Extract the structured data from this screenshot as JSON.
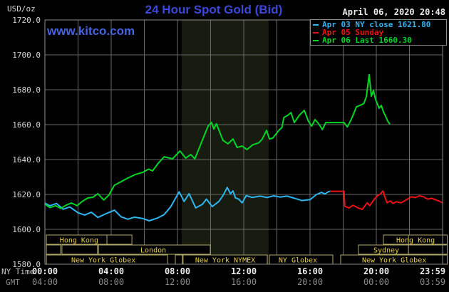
{
  "header": {
    "unit_label": "USD/oz",
    "title": "24 Hour Spot Gold (Bid)",
    "datetime": "April 06, 2020 20:48",
    "site_link": "www.kitco.com"
  },
  "footer": {
    "ny_time_label": "NY Time",
    "gmt_label": "GMT"
  },
  "chart_data": {
    "type": "line",
    "title": "24 Hour Spot Gold (Bid)",
    "ylabel": "USD/oz",
    "ylim": [
      1580,
      1720
    ],
    "xlim_hours": [
      0,
      24
    ],
    "grid_hours_step": 2,
    "apr03_ny_close": 1621.8,
    "apr06_last": 1660.3,
    "nymex_band_hours": [
      8.25,
      13.5
    ],
    "colors": {
      "background": "#000000",
      "grid": "#686868",
      "border": "#8c8c8c",
      "band": "#171b10",
      "session_border": "#b1a767",
      "session_text": "#e9cf4a",
      "y_tick_text": "#d4d4d4",
      "ny_tick_text": "#ececec",
      "gmt_tick_text": "#8a8a8a"
    },
    "y_ticks": [
      {
        "value": 1720,
        "label": "1720.0"
      },
      {
        "value": 1700,
        "label": "1700.0"
      },
      {
        "value": 1680,
        "label": "1680.0"
      },
      {
        "value": 1660,
        "label": "1660.0"
      },
      {
        "value": 1640,
        "label": "1640.0"
      },
      {
        "value": 1620,
        "label": "1620.0"
      },
      {
        "value": 1600,
        "label": "1600.0"
      },
      {
        "value": 1580,
        "label": "1580.0"
      }
    ],
    "x_ticks": [
      {
        "h": 0,
        "ny": "00:00",
        "gmt": "04:00"
      },
      {
        "h": 4,
        "ny": "04:00",
        "gmt": "08:00"
      },
      {
        "h": 8,
        "ny": "08:00",
        "gmt": "12:00"
      },
      {
        "h": 12,
        "ny": "12:00",
        "gmt": "16:00"
      },
      {
        "h": 16,
        "ny": "16:00",
        "gmt": "20:00"
      },
      {
        "h": 20,
        "ny": "20:00",
        "gmt": "00:00"
      },
      {
        "h": 23.983,
        "ny": "23:59",
        "gmt": "03:59"
      }
    ],
    "sessions": [
      {
        "boxes": [
          [
            0.09,
            3.74
          ],
          [
            3.74,
            5.25
          ],
          [
            20.43,
            21.94
          ],
          [
            21.94,
            24.28
          ]
        ],
        "labels": [
          {
            "text": "Hong Kong",
            "cx": 2.06
          },
          {
            "text": "Hong Kong",
            "cx": 22.37
          }
        ]
      },
      {
        "boxes": [
          [
            0.09,
            0.95
          ],
          [
            1.03,
            3.18
          ],
          [
            3.23,
            9.98
          ],
          [
            18.92,
            21.94
          ],
          [
            21.94,
            24.28
          ]
        ],
        "labels": [
          {
            "text": "London",
            "cx": 6.54
          },
          {
            "text": "Sydney",
            "cx": 20.6
          }
        ]
      },
      {
        "boxes": [
          [
            0.09,
            7.4
          ],
          [
            7.87,
            8.3
          ],
          [
            8.34,
            13.42
          ],
          [
            13.55,
            17.38
          ],
          [
            17.85,
            24.28
          ]
        ],
        "labels": [
          {
            "text": "New York Globex",
            "cx": 3.53
          },
          {
            "text": "New York NYMEX",
            "cx": 10.88
          },
          {
            "text": "NY Globex",
            "cx": 15.27
          },
          {
            "text": "New York Globex",
            "cx": 21.08
          }
        ]
      }
    ],
    "series": [
      {
        "id": "apr03-ny-close",
        "name": "Apr 03 NY close 1621.80",
        "color": "#2db6f0",
        "points": [
          [
            0,
            1615
          ],
          [
            0.3,
            1613.5
          ],
          [
            0.7,
            1614.8
          ],
          [
            1.1,
            1611.5
          ],
          [
            1.5,
            1612.8
          ],
          [
            2.0,
            1609.5
          ],
          [
            2.4,
            1608.2
          ],
          [
            2.8,
            1609.8
          ],
          [
            3.2,
            1606.8
          ],
          [
            3.7,
            1609.0
          ],
          [
            4.2,
            1611.0
          ],
          [
            4.6,
            1607.2
          ],
          [
            5.0,
            1605.8
          ],
          [
            5.4,
            1607.0
          ],
          [
            5.9,
            1606.2
          ],
          [
            6.3,
            1604.9
          ],
          [
            6.8,
            1606.5
          ],
          [
            7.2,
            1608.5
          ],
          [
            7.6,
            1613.0
          ],
          [
            8.1,
            1621.5
          ],
          [
            8.4,
            1616.0
          ],
          [
            8.7,
            1620.4
          ],
          [
            9.1,
            1612.3
          ],
          [
            9.5,
            1614.3
          ],
          [
            9.75,
            1617.3
          ],
          [
            10.1,
            1613.0
          ],
          [
            10.5,
            1616.0
          ],
          [
            10.75,
            1619.3
          ],
          [
            11.0,
            1624.0
          ],
          [
            11.2,
            1620.4
          ],
          [
            11.35,
            1622.0
          ],
          [
            11.5,
            1618.0
          ],
          [
            11.7,
            1617.3
          ],
          [
            11.9,
            1615.2
          ],
          [
            12.15,
            1619.3
          ],
          [
            12.5,
            1618.3
          ],
          [
            13.0,
            1619.0
          ],
          [
            13.4,
            1618.2
          ],
          [
            13.8,
            1619.2
          ],
          [
            14.2,
            1618.5
          ],
          [
            14.6,
            1619.0
          ],
          [
            15.0,
            1618.0
          ],
          [
            15.5,
            1616.5
          ],
          [
            16.0,
            1617.0
          ],
          [
            16.4,
            1620.0
          ],
          [
            16.7,
            1621.2
          ],
          [
            16.9,
            1620.3
          ],
          [
            17.1,
            1621.5
          ],
          [
            17.2,
            1621.8
          ]
        ]
      },
      {
        "id": "apr05-sunday",
        "name": "Apr 05 Sunday",
        "color": "#ee1111",
        "points": [
          [
            17.2,
            1621.8
          ],
          [
            18.05,
            1621.8
          ],
          [
            18.1,
            1613.2
          ],
          [
            18.35,
            1612.3
          ],
          [
            18.6,
            1613.8
          ],
          [
            18.9,
            1612.3
          ],
          [
            19.15,
            1611.4
          ],
          [
            19.45,
            1615.2
          ],
          [
            19.6,
            1613.6
          ],
          [
            19.9,
            1617.5
          ],
          [
            20.1,
            1619.5
          ],
          [
            20.25,
            1620.3
          ],
          [
            20.4,
            1622.0
          ],
          [
            20.5,
            1619.0
          ],
          [
            20.65,
            1615.2
          ],
          [
            20.85,
            1616.3
          ],
          [
            21.0,
            1614.8
          ],
          [
            21.2,
            1615.8
          ],
          [
            21.5,
            1615.2
          ],
          [
            21.8,
            1616.8
          ],
          [
            22.1,
            1618.6
          ],
          [
            22.35,
            1618.2
          ],
          [
            22.6,
            1619.2
          ],
          [
            22.85,
            1618.6
          ],
          [
            23.1,
            1617.3
          ],
          [
            23.35,
            1617.8
          ],
          [
            23.6,
            1616.8
          ],
          [
            23.8,
            1616.2
          ],
          [
            23.98,
            1615.2
          ]
        ]
      },
      {
        "id": "apr06-current",
        "name": "Apr 06 Last 1660.30",
        "color": "#00d626",
        "points": [
          [
            0,
            1614.5
          ],
          [
            0.3,
            1612.5
          ],
          [
            0.65,
            1613.5
          ],
          [
            0.95,
            1612.0
          ],
          [
            1.3,
            1613.9
          ],
          [
            1.6,
            1615.1
          ],
          [
            1.95,
            1613.5
          ],
          [
            2.25,
            1616.0
          ],
          [
            2.6,
            1618.0
          ],
          [
            2.9,
            1618.4
          ],
          [
            3.2,
            1620.4
          ],
          [
            3.55,
            1616.8
          ],
          [
            3.85,
            1619.5
          ],
          [
            4.2,
            1625.3
          ],
          [
            4.6,
            1627.3
          ],
          [
            5.0,
            1629.4
          ],
          [
            5.45,
            1631.4
          ],
          [
            5.9,
            1632.6
          ],
          [
            6.25,
            1634.5
          ],
          [
            6.5,
            1633.5
          ],
          [
            6.85,
            1638.0
          ],
          [
            7.2,
            1641.6
          ],
          [
            7.7,
            1640.4
          ],
          [
            8.15,
            1644.9
          ],
          [
            8.5,
            1640.8
          ],
          [
            8.8,
            1642.9
          ],
          [
            9.05,
            1640.4
          ],
          [
            9.45,
            1649.8
          ],
          [
            9.85,
            1659.2
          ],
          [
            10.05,
            1661.3
          ],
          [
            10.2,
            1657.5
          ],
          [
            10.35,
            1660.5
          ],
          [
            10.75,
            1651.0
          ],
          [
            11.05,
            1649.0
          ],
          [
            11.35,
            1651.8
          ],
          [
            11.6,
            1646.9
          ],
          [
            11.9,
            1647.7
          ],
          [
            12.2,
            1645.7
          ],
          [
            12.55,
            1648.5
          ],
          [
            12.9,
            1649.5
          ],
          [
            13.1,
            1651.5
          ],
          [
            13.38,
            1656.7
          ],
          [
            13.55,
            1651.8
          ],
          [
            13.75,
            1652.3
          ],
          [
            14.15,
            1657.0
          ],
          [
            14.3,
            1658.3
          ],
          [
            14.42,
            1664.1
          ],
          [
            14.65,
            1665.3
          ],
          [
            14.85,
            1666.9
          ],
          [
            15.05,
            1661.2
          ],
          [
            15.35,
            1665.3
          ],
          [
            15.65,
            1668.2
          ],
          [
            15.9,
            1662.0
          ],
          [
            16.1,
            1659.2
          ],
          [
            16.3,
            1662.8
          ],
          [
            16.5,
            1660.8
          ],
          [
            16.75,
            1657.2
          ],
          [
            16.95,
            1661.2
          ],
          [
            18.05,
            1661.2
          ],
          [
            18.25,
            1658.7
          ],
          [
            18.5,
            1663.2
          ],
          [
            18.8,
            1670.2
          ],
          [
            19.1,
            1671.4
          ],
          [
            19.25,
            1672.2
          ],
          [
            19.4,
            1676.0
          ],
          [
            19.57,
            1688.6
          ],
          [
            19.7,
            1676.3
          ],
          [
            19.83,
            1679.6
          ],
          [
            19.96,
            1674.3
          ],
          [
            20.17,
            1669.4
          ],
          [
            20.3,
            1671.0
          ],
          [
            20.43,
            1667.3
          ],
          [
            20.56,
            1664.9
          ],
          [
            20.69,
            1662.0
          ],
          [
            20.82,
            1660.3
          ]
        ]
      }
    ]
  }
}
